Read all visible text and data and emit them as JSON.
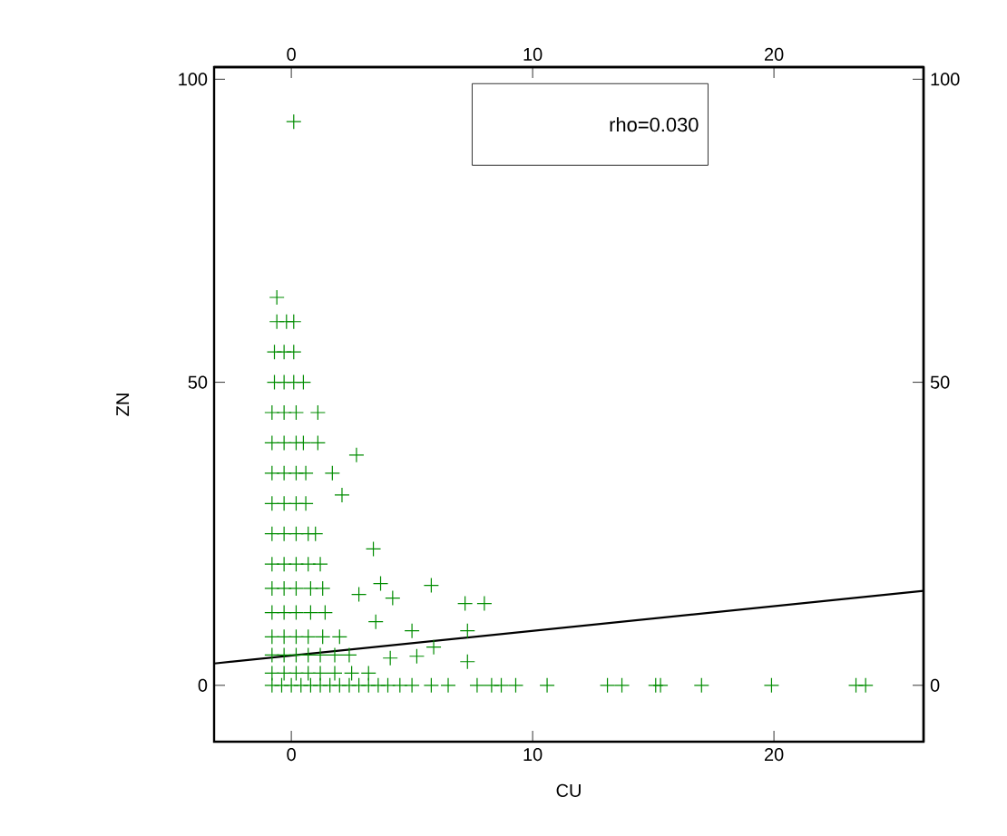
{
  "chart_data": {
    "type": "scatter",
    "xlabel": "CU",
    "ylabel": "ZN",
    "xlim": [
      -3.2,
      26.2
    ],
    "ylim": [
      -9.3,
      102
    ],
    "xticks": [
      0,
      10,
      20
    ],
    "yticks": [
      0,
      50,
      100
    ],
    "x2lim": [
      -3.2,
      26.2
    ],
    "x2ticks": [
      0,
      10,
      20
    ],
    "y2lim": [
      -9.3,
      102
    ],
    "y2ticks": [
      0,
      50,
      100
    ],
    "grid": false,
    "annotations": [
      "rho=0.030"
    ],
    "series": [
      {
        "color": "#008c00",
        "marker": "cross",
        "x": [
          -0.8,
          -0.4,
          0,
          0.4,
          0.8,
          1.2,
          1.6,
          2.0,
          2.4,
          2.8,
          3.2,
          3.6,
          4.0,
          4.5,
          5.0,
          -0.8,
          -0.3,
          0.2,
          0.7,
          1.2,
          1.8,
          2.5,
          3.2,
          -0.8,
          -0.3,
          0.2,
          0.7,
          1.2,
          1.8,
          2.4,
          -0.8,
          -0.3,
          0.2,
          0.7,
          1.3,
          2.0,
          -0.8,
          -0.3,
          0.2,
          0.8,
          1.4,
          -0.8,
          -0.3,
          0.2,
          0.8,
          1.3,
          -0.8,
          -0.3,
          0.2,
          0.7,
          1.2,
          -0.8,
          -0.3,
          0.2,
          0.7,
          1.0,
          -0.8,
          -0.3,
          0.2,
          0.6,
          -0.8,
          -0.3,
          0.2,
          0.6,
          -0.8,
          -0.3,
          0.2,
          0.5,
          -0.8,
          -0.3,
          0.2,
          -0.7,
          -0.3,
          0.1,
          0.5,
          -0.7,
          -0.3,
          0.1,
          -0.6,
          -0.2,
          0.1,
          -0.6,
          0.1,
          5.8,
          6.5,
          7.7,
          8.3,
          8.7,
          9.3,
          10.6,
          13.1,
          13.7,
          15.1,
          15.3,
          17.0,
          19.9,
          23.4,
          23.8,
          2.7,
          3.4,
          5.8,
          7.2,
          8.0,
          7.3,
          7.3,
          5.0,
          4.2,
          3.7,
          3.5,
          1.7,
          2.1,
          1.1,
          1.1,
          2.8,
          5.9,
          5.2,
          4.1
        ],
        "values": [
          0,
          0,
          0,
          0,
          0,
          0,
          0,
          0,
          0,
          0,
          0,
          0,
          0,
          0,
          0,
          2,
          2,
          2,
          2,
          2,
          2,
          2,
          2,
          5,
          5,
          5,
          5,
          5,
          5,
          5,
          8,
          8,
          8,
          8,
          8,
          8,
          12,
          12,
          12,
          12,
          12,
          16,
          16,
          16,
          16,
          16,
          20,
          20,
          20,
          20,
          20,
          25,
          25,
          25,
          25,
          25,
          30,
          30,
          30,
          30,
          35,
          35,
          35,
          35,
          40,
          40,
          40,
          40,
          45,
          45,
          45,
          50,
          50,
          50,
          50,
          55,
          55,
          55,
          60,
          60,
          60,
          64,
          93,
          0,
          0,
          0,
          0,
          0,
          0,
          0,
          0,
          0,
          0,
          0,
          0,
          0,
          0,
          0,
          38,
          22.5,
          16.5,
          13.5,
          13.5,
          9,
          3.9,
          9,
          14.4,
          16.8,
          10.5,
          35,
          31.4,
          40,
          45,
          15,
          6.3,
          4.8,
          4.5
        ]
      },
      {
        "type": "line",
        "color": "#000000",
        "line_style": "solid",
        "x": [
          -3.2,
          26.2
        ],
        "values": [
          3.6,
          15.6
        ]
      }
    ]
  }
}
